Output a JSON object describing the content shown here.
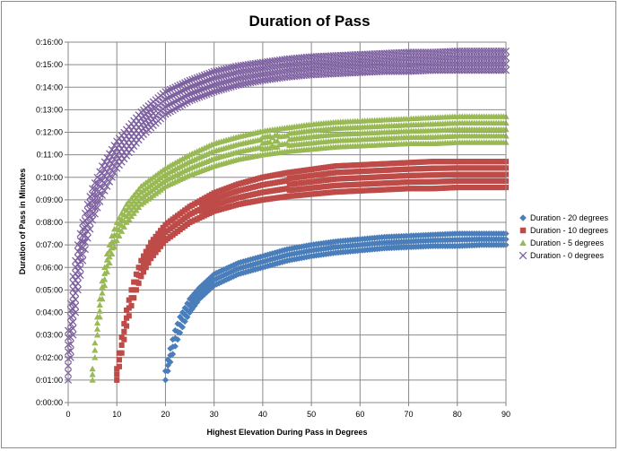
{
  "chart_data": {
    "type": "scatter",
    "title": "Duration of Pass",
    "xlabel": "Highest Elevation During Pass  in Degrees",
    "ylabel": "Duration of Pass in Minutes",
    "xlim": [
      0,
      90
    ],
    "ylim_minutes": [
      0,
      16
    ],
    "x_ticks": [
      "0",
      "10",
      "20",
      "30",
      "40",
      "50",
      "60",
      "70",
      "80",
      "90"
    ],
    "y_ticks": [
      "0:00:00",
      "0:01:00",
      "0:02:00",
      "0:03:00",
      "0:04:00",
      "0:05:00",
      "0:06:00",
      "0:07:00",
      "0:08:00",
      "0:09:00",
      "0:10:00",
      "0:11:00",
      "0:12:00",
      "0:13:00",
      "0:14:00",
      "0:15:00",
      "0:16:00"
    ],
    "grid": true,
    "legend_position": "right",
    "series": [
      {
        "name": "Duration - 20 degrees",
        "color": "#4a7ebb",
        "marker": "diamond",
        "x": [
          20,
          21,
          22,
          23,
          24,
          25,
          27,
          30,
          35,
          40,
          45,
          50,
          55,
          60,
          65,
          70,
          75,
          80,
          85,
          90
        ],
        "y_min": [
          1.0,
          1.8,
          2.5,
          3.1,
          3.6,
          4.0,
          4.6,
          5.2,
          5.7,
          6.0,
          6.3,
          6.5,
          6.65,
          6.75,
          6.85,
          6.9,
          6.95,
          6.95,
          7.0,
          7.0
        ],
        "y_max": [
          1.4,
          2.4,
          3.2,
          3.8,
          4.2,
          4.6,
          5.1,
          5.7,
          6.2,
          6.5,
          6.8,
          7.0,
          7.15,
          7.25,
          7.35,
          7.4,
          7.45,
          7.5,
          7.5,
          7.5
        ]
      },
      {
        "name": "Duration - 10 degrees",
        "color": "#be4b48",
        "marker": "square",
        "x": [
          10,
          11,
          12,
          13,
          14,
          15,
          17,
          20,
          25,
          30,
          35,
          40,
          45,
          50,
          55,
          60,
          65,
          70,
          75,
          80,
          85,
          90
        ],
        "y_min": [
          1.0,
          2.2,
          3.4,
          4.3,
          5.0,
          5.6,
          6.4,
          7.2,
          8.0,
          8.5,
          8.8,
          9.0,
          9.15,
          9.25,
          9.35,
          9.4,
          9.45,
          9.5,
          9.5,
          9.55,
          9.55,
          9.55
        ],
        "y_max": [
          1.5,
          2.9,
          4.1,
          5.0,
          5.7,
          6.3,
          7.1,
          7.9,
          8.7,
          9.3,
          9.7,
          10.0,
          10.2,
          10.35,
          10.5,
          10.55,
          10.6,
          10.65,
          10.7,
          10.7,
          10.7,
          10.7
        ]
      },
      {
        "name": "Duration - 5 degrees",
        "color": "#98b954",
        "marker": "triangle",
        "x": [
          5,
          6,
          7,
          8,
          9,
          10,
          12,
          15,
          20,
          25,
          30,
          35,
          40,
          45,
          50,
          55,
          60,
          65,
          70,
          75,
          80,
          85,
          90
        ],
        "y_min": [
          1.0,
          3.0,
          4.6,
          5.8,
          6.6,
          7.2,
          8.0,
          8.8,
          9.6,
          10.1,
          10.5,
          10.8,
          11.0,
          11.15,
          11.25,
          11.35,
          11.4,
          11.45,
          11.5,
          11.5,
          11.55,
          11.55,
          11.55
        ],
        "y_max": [
          1.5,
          3.8,
          5.4,
          6.6,
          7.4,
          8.0,
          8.8,
          9.6,
          10.4,
          11.0,
          11.5,
          11.8,
          12.05,
          12.2,
          12.35,
          12.45,
          12.5,
          12.55,
          12.6,
          12.65,
          12.7,
          12.7,
          12.7
        ]
      },
      {
        "name": "Duration - 0 degrees",
        "color": "#7d60a0",
        "marker": "x",
        "x": [
          0,
          1,
          2,
          3,
          4,
          5,
          7,
          10,
          15,
          20,
          25,
          30,
          35,
          40,
          45,
          50,
          55,
          60,
          65,
          70,
          75,
          80,
          85,
          90
        ],
        "y_min": [
          1.0,
          3.0,
          5.0,
          6.3,
          7.3,
          8.1,
          9.2,
          10.4,
          11.8,
          12.8,
          13.4,
          13.8,
          14.1,
          14.3,
          14.45,
          14.55,
          14.6,
          14.65,
          14.7,
          14.7,
          14.75,
          14.75,
          14.75,
          14.75
        ],
        "y_max": [
          3.2,
          5.6,
          7.0,
          8.0,
          8.8,
          9.5,
          10.5,
          11.6,
          12.9,
          13.8,
          14.3,
          14.7,
          14.95,
          15.1,
          15.25,
          15.35,
          15.4,
          15.45,
          15.5,
          15.55,
          15.55,
          15.6,
          15.6,
          15.6
        ]
      }
    ]
  }
}
